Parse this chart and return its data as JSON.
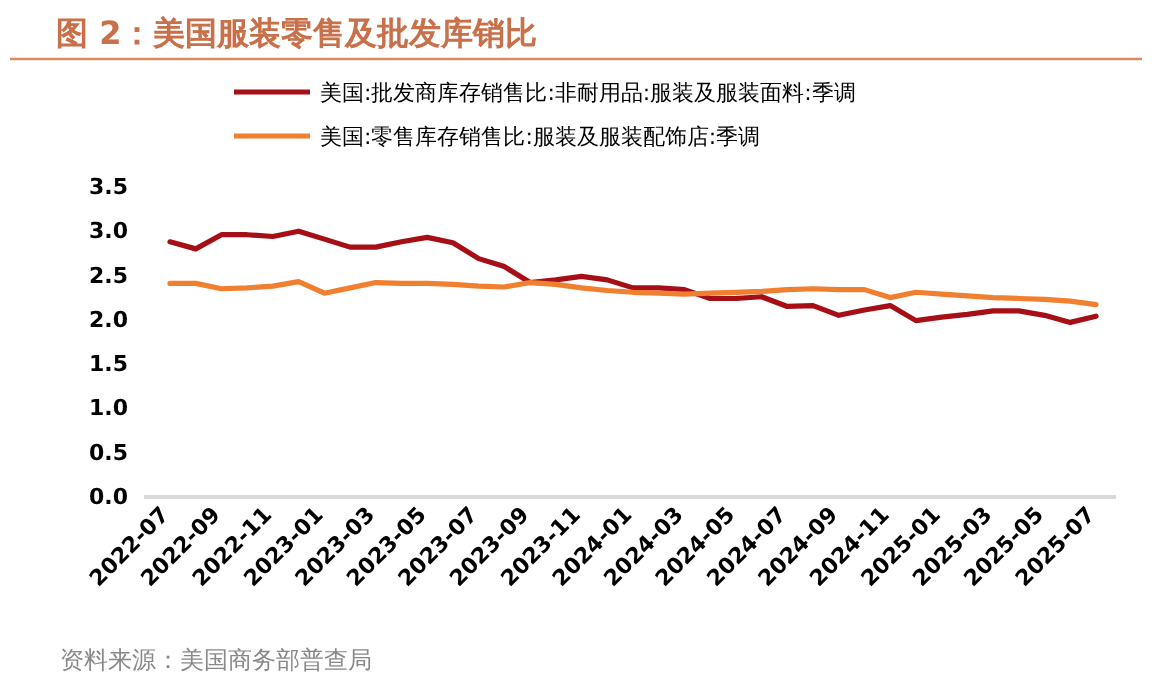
{
  "chart_data": {
    "type": "line",
    "title": "图 2：美国服装零售及批发库销比",
    "categories": [
      "2022-07",
      null,
      "2022-09",
      null,
      "2022-11",
      null,
      "2023-01",
      null,
      "2023-03",
      null,
      "2023-05",
      null,
      "2023-07",
      null,
      "2023-09",
      null,
      "2023-11",
      null,
      "2024-01",
      null,
      "2024-03",
      null,
      "2024-05",
      null,
      "2024-07",
      null,
      "2024-09",
      null,
      "2024-11",
      null,
      "2025-01",
      null,
      "2025-03",
      null,
      "2025-05",
      null,
      "2025-07"
    ],
    "series": [
      {
        "name": "美国:批发商库存销售比:非耐用品:服装及服装面料:季调",
        "color": "#a50f15",
        "values": [
          2.87,
          2.79,
          2.95,
          2.95,
          2.93,
          2.99,
          2.9,
          2.81,
          2.81,
          2.87,
          2.92,
          2.86,
          2.68,
          2.59,
          2.41,
          2.44,
          2.48,
          2.44,
          2.35,
          2.35,
          2.33,
          2.23,
          2.23,
          2.25,
          2.14,
          2.15,
          2.04,
          2.1,
          2.15,
          1.98,
          2.02,
          2.05,
          2.09,
          2.09,
          2.04,
          1.96,
          2.03
        ]
      },
      {
        "name": "美国:零售库存销售比:服装及服装配饰店:季调",
        "color": "#f07f2f",
        "values": [
          2.4,
          2.4,
          2.34,
          2.35,
          2.37,
          2.42,
          2.29,
          2.35,
          2.41,
          2.4,
          2.4,
          2.39,
          2.37,
          2.36,
          2.41,
          2.39,
          2.35,
          2.32,
          2.3,
          2.29,
          2.28,
          2.29,
          2.3,
          2.31,
          2.33,
          2.34,
          2.33,
          2.33,
          2.24,
          2.3,
          2.28,
          2.26,
          2.24,
          2.23,
          2.22,
          2.2,
          2.16
        ]
      }
    ],
    "ylim": [
      0,
      3.5
    ],
    "yticks": [
      {
        "value": 0,
        "label": "0.0"
      },
      {
        "value": 0.5,
        "label": "0.5"
      },
      {
        "value": 1,
        "label": "1.0"
      },
      {
        "value": 1.5,
        "label": "1.5"
      },
      {
        "value": 2,
        "label": "2.0"
      },
      {
        "value": 2.5,
        "label": "2.5"
      },
      {
        "value": 3,
        "label": "3.0"
      },
      {
        "value": 3.5,
        "label": "3.5"
      }
    ],
    "legend": "top",
    "annotations": [
      "资料来源：美国商务部普查局"
    ]
  }
}
